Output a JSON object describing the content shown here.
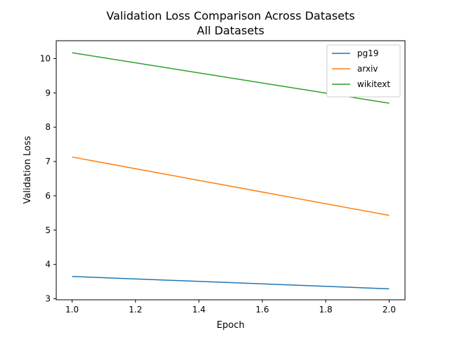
{
  "chart_data": {
    "type": "line",
    "title": "Validation Loss Comparison Across Datasets",
    "subtitle": "All Datasets",
    "xlabel": "Epoch",
    "ylabel": "Validation Loss",
    "xlim": [
      0.95,
      2.05
    ],
    "ylim": [
      2.97,
      10.52
    ],
    "xticks": [
      "1.0",
      "1.2",
      "1.4",
      "1.6",
      "1.8",
      "2.0"
    ],
    "yticks": [
      "3",
      "4",
      "5",
      "6",
      "7",
      "8",
      "9",
      "10"
    ],
    "grid": false,
    "legend_position": "top-right",
    "x": [
      1.0,
      2.0
    ],
    "series": [
      {
        "name": "pg19",
        "color": "#1f77b4",
        "values": [
          3.65,
          3.29
        ]
      },
      {
        "name": "arxiv",
        "color": "#ff7f0e",
        "values": [
          7.13,
          5.43
        ]
      },
      {
        "name": "wikitext",
        "color": "#2ca02c",
        "values": [
          10.17,
          8.7
        ]
      }
    ]
  }
}
